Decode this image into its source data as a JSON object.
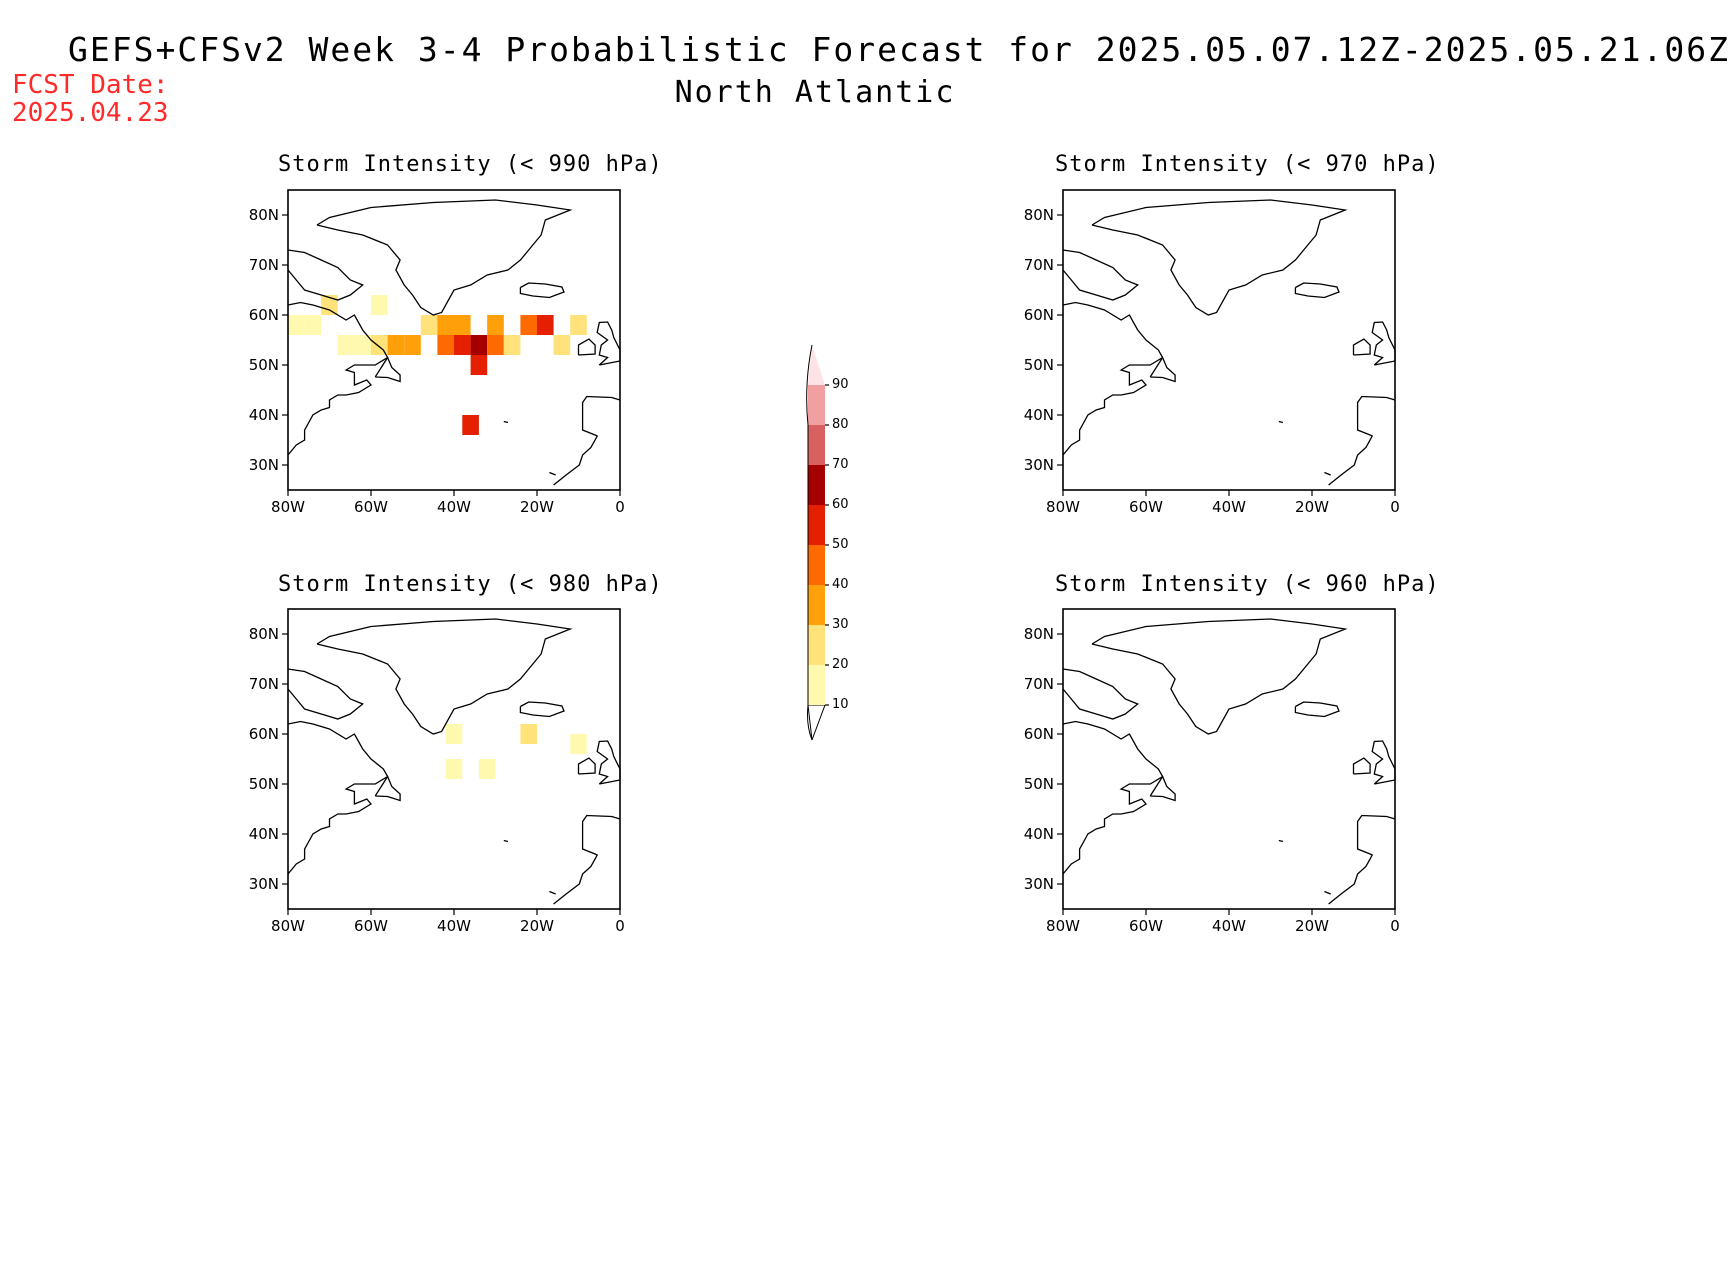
{
  "header": {
    "title_line1": "GEFS+CFSv2 Week 3-4 Probabilistic Forecast for 2025.05.07.12Z-2025.05.21.06Z",
    "title_line2": "North Atlantic",
    "fcst_label": "FCST Date:",
    "fcst_value": "2025.04.23"
  },
  "panels": [
    {
      "id": "p990",
      "title": "Storm Intensity (< 990 hPa)"
    },
    {
      "id": "p970",
      "title": "Storm Intensity (< 970 hPa)"
    },
    {
      "id": "p980",
      "title": "Storm Intensity (< 980 hPa)"
    },
    {
      "id": "p960",
      "title": "Storm Intensity (< 960 hPa)"
    }
  ],
  "axes": {
    "lat_labels": [
      "80N",
      "70N",
      "60N",
      "50N",
      "40N",
      "30N"
    ],
    "lon_labels": [
      "80W",
      "60W",
      "40W",
      "20W",
      "0"
    ]
  },
  "colorbar": {
    "levels": [
      "10",
      "20",
      "30",
      "40",
      "50",
      "60",
      "70",
      "80",
      "90"
    ],
    "colors": [
      "#fff9b0",
      "#ffe27a",
      "#ffa00a",
      "#ff6a00",
      "#e42000",
      "#a50000",
      "#d96060",
      "#f0a0a0",
      "#fde2e6"
    ]
  },
  "chart_data": {
    "type": "heatmap",
    "lat_range": [
      25,
      85
    ],
    "lon_range": [
      -80,
      0
    ],
    "p990_cells": [
      {
        "lon": -78,
        "lat": 58,
        "v": 10
      },
      {
        "lon": -74,
        "lat": 58,
        "v": 10
      },
      {
        "lon": -70,
        "lat": 62,
        "v": 20
      },
      {
        "lon": -66,
        "lat": 54,
        "v": 10
      },
      {
        "lon": -62,
        "lat": 54,
        "v": 10
      },
      {
        "lon": -58,
        "lat": 62,
        "v": 10
      },
      {
        "lon": -58,
        "lat": 54,
        "v": 20
      },
      {
        "lon": -54,
        "lat": 54,
        "v": 30
      },
      {
        "lon": -50,
        "lat": 54,
        "v": 30
      },
      {
        "lon": -46,
        "lat": 58,
        "v": 20
      },
      {
        "lon": -42,
        "lat": 58,
        "v": 30
      },
      {
        "lon": -42,
        "lat": 54,
        "v": 40
      },
      {
        "lon": -38,
        "lat": 58,
        "v": 30
      },
      {
        "lon": -38,
        "lat": 54,
        "v": 50
      },
      {
        "lon": -34,
        "lat": 54,
        "v": 60
      },
      {
        "lon": -34,
        "lat": 50,
        "v": 50
      },
      {
        "lon": -30,
        "lat": 58,
        "v": 30
      },
      {
        "lon": -30,
        "lat": 54,
        "v": 40
      },
      {
        "lon": -26,
        "lat": 54,
        "v": 20
      },
      {
        "lon": -22,
        "lat": 58,
        "v": 40
      },
      {
        "lon": -18,
        "lat": 58,
        "v": 50
      },
      {
        "lon": -14,
        "lat": 54,
        "v": 20
      },
      {
        "lon": -10,
        "lat": 58,
        "v": 20
      },
      {
        "lon": -36,
        "lat": 38,
        "v": 50
      }
    ],
    "p980_cells": [
      {
        "lon": -40,
        "lat": 60,
        "v": 10
      },
      {
        "lon": -22,
        "lat": 60,
        "v": 20
      },
      {
        "lon": -32,
        "lat": 53,
        "v": 10
      },
      {
        "lon": -40,
        "lat": 53,
        "v": 10
      },
      {
        "lon": -10,
        "lat": 58,
        "v": 10
      }
    ],
    "p970_cells": [],
    "p960_cells": []
  }
}
